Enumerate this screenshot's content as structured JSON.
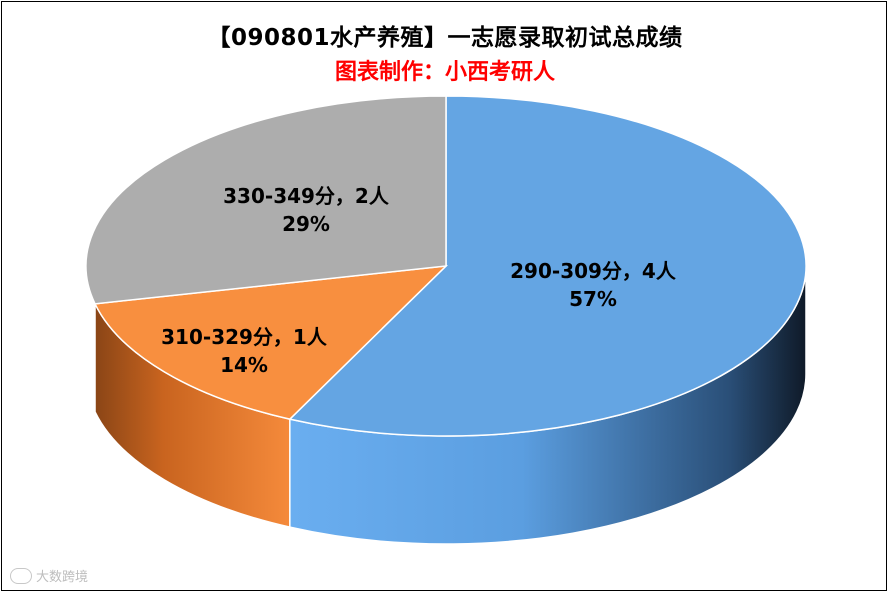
{
  "title": "【090801水产养殖】一志愿录取初试总成绩",
  "subtitle": "图表制作：小西考研人",
  "watermark": "大数跨境",
  "chart_data": {
    "type": "pie",
    "title": "【090801水产养殖】一志愿录取初试总成绩",
    "subtitle": "图表制作：小西考研人",
    "style": "3d",
    "slices": [
      {
        "label": "290-309分，4人",
        "value": 4,
        "percent": "57%",
        "color": "#64a5e3",
        "side_color": "#4f8cc8"
      },
      {
        "label": "310-329分，1人",
        "value": 1,
        "percent": "14%",
        "color": "#f88f3f",
        "side_color": "#d36f22"
      },
      {
        "label": "330-349分，2人",
        "value": 2,
        "percent": "29%",
        "color": "#adadad",
        "side_color": "#8c8c8c"
      }
    ]
  }
}
